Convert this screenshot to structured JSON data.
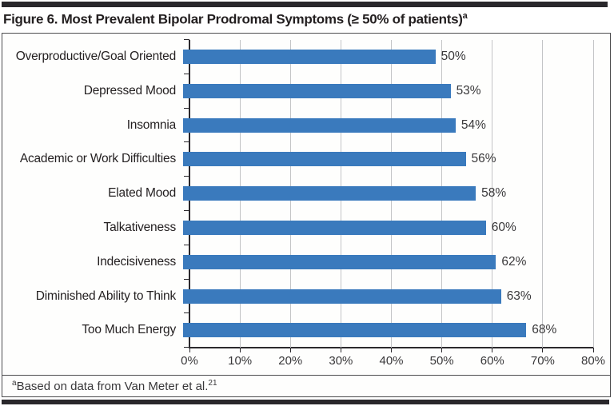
{
  "header": {
    "title": "Figure 6. Most Prevalent Bipolar Prodromal Symptoms (≥ 50% of patients)",
    "title_superscript": "a"
  },
  "chart_data": {
    "type": "bar",
    "orientation": "horizontal",
    "title": "Figure 6. Most Prevalent Bipolar Prodromal Symptoms (≥ 50% of patients)",
    "categories": [
      "Overproductive/Goal Oriented",
      "Depressed Mood",
      "Insomnia",
      "Academic or Work Difficulties",
      "Elated Mood",
      "Talkativeness",
      "Indecisiveness",
      "Diminished Ability to Think",
      "Too Much Energy"
    ],
    "values": [
      50,
      53,
      54,
      56,
      58,
      60,
      62,
      63,
      68
    ],
    "value_labels": [
      "50%",
      "53%",
      "54%",
      "56%",
      "58%",
      "60%",
      "62%",
      "63%",
      "68%"
    ],
    "xlabel": "",
    "ylabel": "",
    "x_ticks": [
      "0%",
      "10%",
      "20%",
      "30%",
      "40%",
      "50%",
      "60%",
      "70%",
      "80%"
    ],
    "xlim": [
      0,
      80
    ],
    "grid": "vertical-only",
    "legend": "none",
    "bar_color": "#3A7ABD"
  },
  "footnote": {
    "marker_superscript": "a",
    "text": "Based on data from Van Meter et al.",
    "reference_superscript": "21"
  },
  "colors": {
    "bar": "#3A7ABD",
    "accent_bar": "#29272B",
    "gridline": "#C3C4C6",
    "axis": "#2B292D",
    "text": "#231F20"
  }
}
